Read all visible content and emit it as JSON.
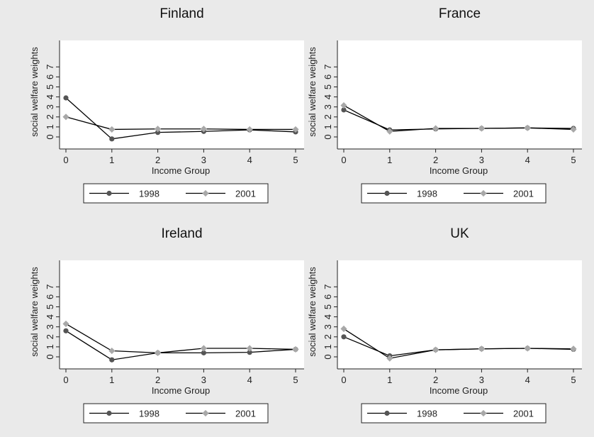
{
  "colors": {
    "background": "#eaeaea",
    "plot_background": "#ffffff",
    "line": "#000000",
    "marker_1998": "#555555",
    "marker_2001": "#a8a8a8"
  },
  "chart_data": [
    {
      "type": "line",
      "title": "Finland",
      "xlabel": "Income Group",
      "ylabel": "social welfare weights",
      "xlim": [
        0,
        5
      ],
      "ylim": [
        0,
        7
      ],
      "x_ticks": [
        0,
        1,
        2,
        3,
        4,
        5
      ],
      "y_ticks": [
        0,
        1,
        2,
        3,
        4,
        5,
        6,
        7
      ],
      "legend": "bottom",
      "grid": false,
      "x": [
        0,
        1,
        2,
        3,
        4,
        5
      ],
      "series": [
        {
          "name": "1998",
          "marker": "circle",
          "values": [
            3.9,
            -0.2,
            0.45,
            0.55,
            0.7,
            0.5
          ]
        },
        {
          "name": "2001",
          "marker": "diamond",
          "values": [
            2.0,
            0.75,
            0.8,
            0.8,
            0.75,
            0.75
          ]
        }
      ]
    },
    {
      "type": "line",
      "title": "France",
      "xlabel": "Income Group",
      "ylabel": "social welfare weights",
      "xlim": [
        0,
        5
      ],
      "ylim": [
        0,
        7
      ],
      "x_ticks": [
        0,
        1,
        2,
        3,
        4,
        5
      ],
      "y_ticks": [
        0,
        1,
        2,
        3,
        4,
        5,
        6,
        7
      ],
      "legend": "bottom",
      "grid": false,
      "x": [
        0,
        1,
        2,
        3,
        4,
        5
      ],
      "series": [
        {
          "name": "1998",
          "marker": "circle",
          "values": [
            2.7,
            0.7,
            0.8,
            0.85,
            0.9,
            0.85
          ]
        },
        {
          "name": "2001",
          "marker": "diamond",
          "values": [
            3.15,
            0.55,
            0.85,
            0.85,
            0.9,
            0.75
          ]
        }
      ]
    },
    {
      "type": "line",
      "title": "Ireland",
      "xlabel": "Income Group",
      "ylabel": "social welfare weights",
      "xlim": [
        0,
        5
      ],
      "ylim": [
        0,
        7
      ],
      "x_ticks": [
        0,
        1,
        2,
        3,
        4,
        5
      ],
      "y_ticks": [
        0,
        1,
        2,
        3,
        4,
        5,
        6,
        7
      ],
      "legend": "bottom",
      "grid": false,
      "x": [
        0,
        1,
        2,
        3,
        4,
        5
      ],
      "series": [
        {
          "name": "1998",
          "marker": "circle",
          "values": [
            2.6,
            -0.3,
            0.4,
            0.4,
            0.45,
            0.75
          ]
        },
        {
          "name": "2001",
          "marker": "diamond",
          "values": [
            3.3,
            0.6,
            0.4,
            0.85,
            0.85,
            0.75
          ]
        }
      ]
    },
    {
      "type": "line",
      "title": "UK",
      "xlabel": "Income Group",
      "ylabel": "social welfare weights",
      "xlim": [
        0,
        5
      ],
      "ylim": [
        0,
        7
      ],
      "x_ticks": [
        0,
        1,
        2,
        3,
        4,
        5
      ],
      "y_ticks": [
        0,
        1,
        2,
        3,
        4,
        5,
        6,
        7
      ],
      "legend": "bottom",
      "grid": false,
      "x": [
        0,
        1,
        2,
        3,
        4,
        5
      ],
      "series": [
        {
          "name": "1998",
          "marker": "circle",
          "values": [
            2.0,
            0.1,
            0.7,
            0.8,
            0.85,
            0.75
          ]
        },
        {
          "name": "2001",
          "marker": "diamond",
          "values": [
            2.8,
            -0.15,
            0.7,
            0.8,
            0.85,
            0.8
          ]
        }
      ]
    }
  ]
}
